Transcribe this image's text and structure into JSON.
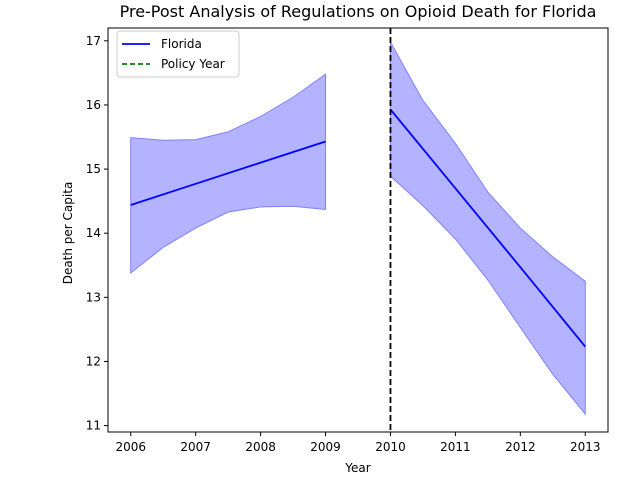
{
  "chart_data": {
    "type": "line",
    "title": "Pre-Post Analysis of Regulations on Opioid Death for Florida",
    "xlabel": "Year",
    "ylabel": "Death per Capita",
    "xlim": [
      2005.65,
      2013.35
    ],
    "ylim": [
      10.9,
      17.2
    ],
    "x_ticks": [
      "2006",
      "2007",
      "2008",
      "2009",
      "2010",
      "2011",
      "2012",
      "2013"
    ],
    "y_ticks": [
      "11",
      "12",
      "13",
      "14",
      "15",
      "16",
      "17"
    ],
    "policy_year": 2010,
    "grid": false,
    "legend_position": "top-left",
    "colors": {
      "line": "#0000ff",
      "band": "#b3b3ff",
      "policy_legend": "#008000",
      "policy_line": "#000000"
    },
    "series": [
      {
        "name": "Florida",
        "segments": [
          {
            "x": [
              2006,
              2007,
              2008,
              2009
            ],
            "y": [
              14.44,
              14.77,
              15.1,
              15.43
            ],
            "band_x": [
              2006,
              2006.5,
              2007,
              2007.5,
              2008,
              2008.5,
              2009
            ],
            "band_lower": [
              13.38,
              13.78,
              14.08,
              14.33,
              14.41,
              14.42,
              14.37
            ],
            "band_upper": [
              15.49,
              15.45,
              15.46,
              15.58,
              15.82,
              16.12,
              16.48
            ]
          },
          {
            "x": [
              2010,
              2011,
              2012,
              2013
            ],
            "y": [
              15.93,
              14.7,
              13.47,
              12.23
            ],
            "band_x": [
              2010,
              2010.5,
              2011,
              2011.5,
              2012,
              2012.5,
              2013
            ],
            "band_lower": [
              14.89,
              14.43,
              13.91,
              13.27,
              12.53,
              11.8,
              11.18
            ],
            "band_upper": [
              16.98,
              16.07,
              15.4,
              14.64,
              14.08,
              13.63,
              13.25
            ]
          }
        ]
      },
      {
        "name": "Policy Year",
        "x": 2010
      }
    ]
  }
}
